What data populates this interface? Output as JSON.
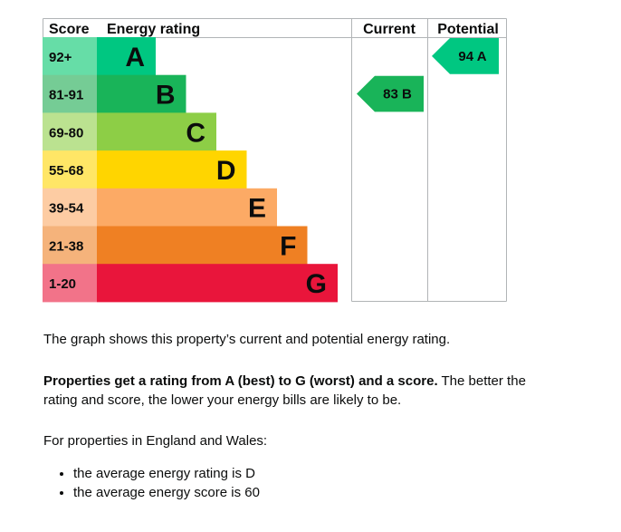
{
  "chart_data": {
    "type": "bar",
    "header": {
      "score": "Score",
      "energy_rating": "Energy rating",
      "current": "Current",
      "potential": "Potential"
    },
    "bands": [
      {
        "letter": "A",
        "range": "92+",
        "color": "#00c781",
        "range_bg": "#66dda7"
      },
      {
        "letter": "B",
        "range": "81-91",
        "color": "#19b459",
        "range_bg": "#75cc95"
      },
      {
        "letter": "C",
        "range": "69-80",
        "color": "#8dce46",
        "range_bg": "#bbe290"
      },
      {
        "letter": "D",
        "range": "55-68",
        "color": "#ffd500",
        "range_bg": "#ffe666"
      },
      {
        "letter": "E",
        "range": "39-54",
        "color": "#fcaa65",
        "range_bg": "#fdcca3"
      },
      {
        "letter": "F",
        "range": "21-38",
        "color": "#ef8023",
        "range_bg": "#f5b37b"
      },
      {
        "letter": "G",
        "range": "1-20",
        "color": "#e9153b",
        "range_bg": "#f27389"
      }
    ],
    "current": {
      "score": 83,
      "letter": "B",
      "label": "83 B",
      "color": "#19b459"
    },
    "potential": {
      "score": 94,
      "letter": "A",
      "label": "94 A",
      "color": "#00c781"
    }
  },
  "description": {
    "intro": "The graph shows this property’s current and potential energy rating.",
    "bold": "Properties get a rating from A (best) to G (worst) and a score.",
    "rest": " The better the rating and score, the lower your energy bills are likely to be.",
    "region": "For properties in England and Wales:",
    "bullets": [
      "the average energy rating is D",
      "the average energy score is 60"
    ]
  }
}
